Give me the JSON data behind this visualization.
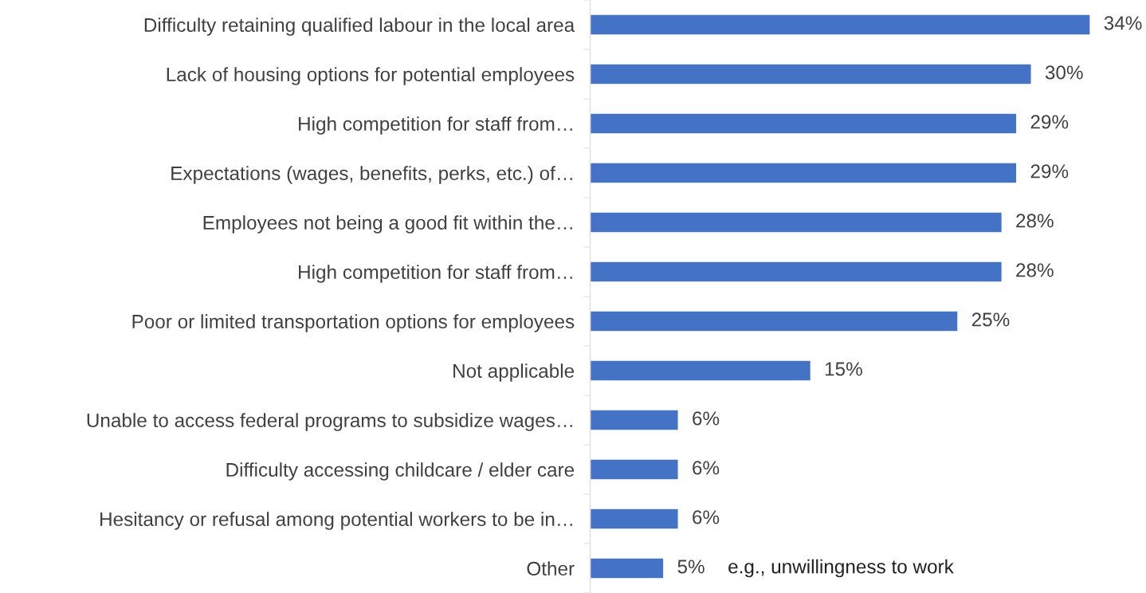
{
  "chart_data": {
    "type": "bar",
    "orientation": "horizontal",
    "categories": [
      "Difficulty retaining qualified labour in the local area",
      "Lack of housing options for potential employees",
      "High competition for staff from…",
      "Expectations (wages, benefits, perks, etc.) of…",
      "Employees not being a good fit within the…",
      "High competition for staff from…",
      "Poor or limited transportation options for employees",
      "Not applicable",
      "Unable to access federal programs to subsidize wages…",
      "Difficulty accessing childcare / elder care",
      "Hesitancy or refusal among potential workers to be in…",
      "Other"
    ],
    "values": [
      34,
      30,
      29,
      29,
      28,
      28,
      25,
      15,
      6,
      6,
      6,
      5
    ],
    "color": "#4472c4",
    "value_labels": [
      "34%",
      "30%",
      "29%",
      "29%",
      "28%",
      "28%",
      "25%",
      "15%",
      "6%",
      "6%",
      "6%",
      "5%"
    ],
    "annotations": [
      "e.g., unwillingness to work"
    ],
    "grid": false,
    "legend": false
  }
}
